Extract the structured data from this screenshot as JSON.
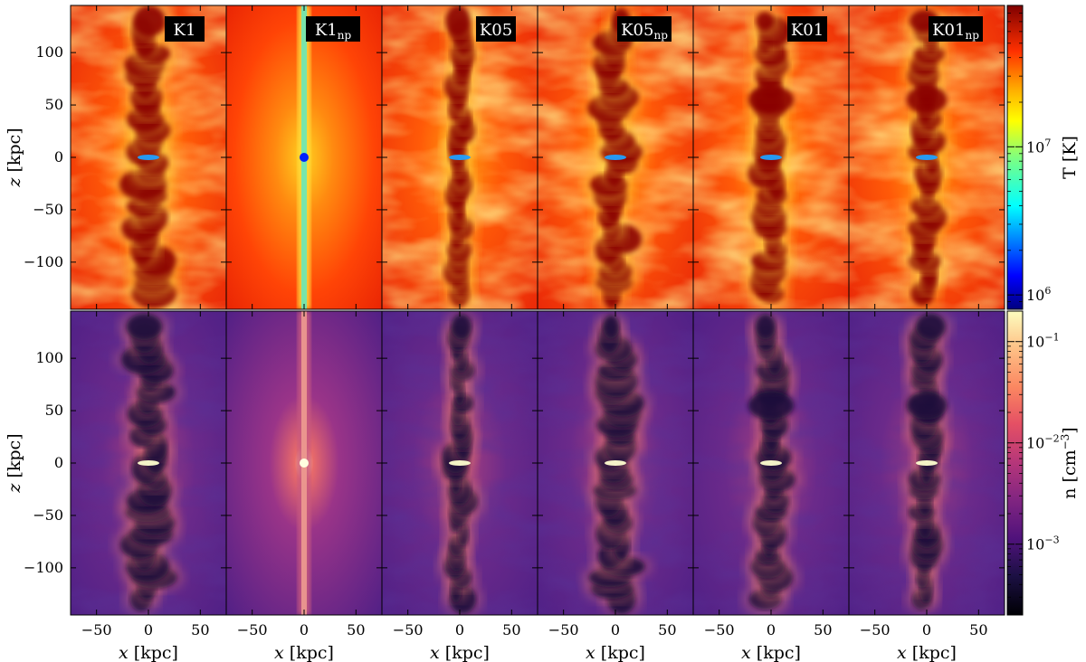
{
  "chart_data": {
    "type": "heatmap",
    "panels": [
      "K1",
      "K1np",
      "K05",
      "K05np",
      "K01",
      "K01np"
    ],
    "panel_labels": [
      {
        "base": "K1",
        "sub": ""
      },
      {
        "base": "K1",
        "sub": "np"
      },
      {
        "base": "K05",
        "sub": ""
      },
      {
        "base": "K05",
        "sub": "np"
      },
      {
        "base": "K01",
        "sub": ""
      },
      {
        "base": "K01",
        "sub": "np"
      }
    ],
    "rows": [
      {
        "quantity": "temperature",
        "colorbar_label": "T [K]",
        "colormap": "jet",
        "colorbar_range": [
          800000,
          90000000
        ],
        "colorbar_ticks": [
          {
            "value": 1000000,
            "base": "10",
            "exp": "6"
          },
          {
            "value": 10000000,
            "base": "10",
            "exp": "7"
          }
        ]
      },
      {
        "quantity": "density",
        "colorbar_label": "n [cm−3]",
        "colormap": "magma",
        "colorbar_range": [
          0.0002,
          0.2
        ],
        "colorbar_ticks": [
          {
            "value": 0.001,
            "base": "10",
            "exp": "−3"
          },
          {
            "value": 0.01,
            "base": "10",
            "exp": "−2"
          },
          {
            "value": 0.1,
            "base": "10",
            "exp": "−1"
          }
        ]
      }
    ],
    "xlabel": "x [kpc]",
    "ylabel": "z [kpc]",
    "xlim": [
      -75,
      75
    ],
    "ylim": [
      -145,
      145
    ],
    "xticks": [
      -50,
      0,
      50
    ],
    "yticks": [
      -100,
      -50,
      0,
      50,
      100
    ],
    "tick_labels_x": [
      "−50",
      "0",
      "50"
    ],
    "tick_labels_y": [
      "−100",
      "−50",
      "0",
      "50",
      "100"
    ]
  }
}
